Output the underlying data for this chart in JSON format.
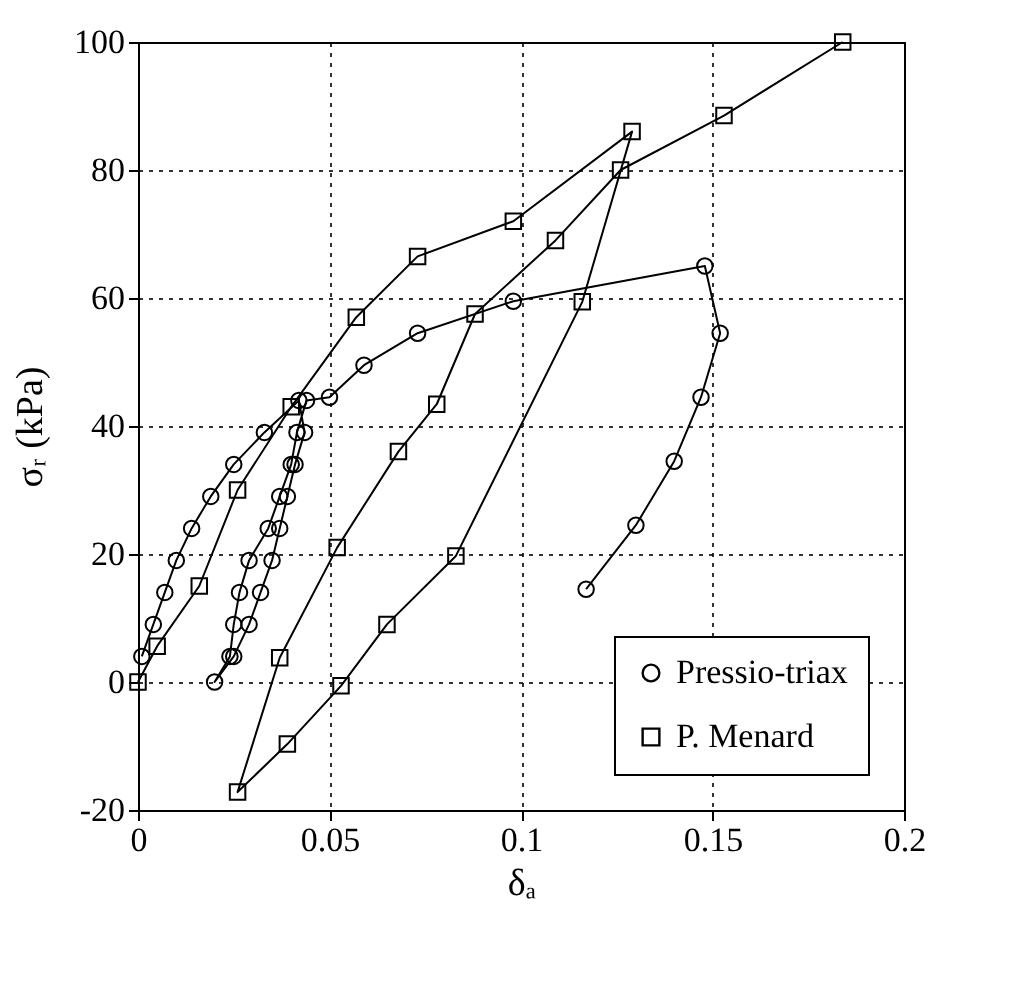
{
  "chart_data": {
    "type": "line",
    "xlabel": "δₐ",
    "ylabel": "σᵣ (kPa)",
    "xlim": [
      0,
      0.2
    ],
    "xticks": [
      0,
      0.05,
      0.1,
      0.15,
      0.2
    ],
    "ylim": [
      -20,
      100
    ],
    "yticks": [
      -20,
      0,
      20,
      40,
      60,
      80,
      100
    ],
    "grid": true,
    "legend": "bottom right",
    "line_style": "solid",
    "series": [
      {
        "name": "Pressio-triax",
        "color": "#000000",
        "marker": "circle",
        "x": [
          0.001,
          0.004,
          0.007,
          0.01,
          0.014,
          0.019,
          0.025,
          0.033,
          0.042,
          0.0435,
          0.041,
          0.039,
          0.037,
          0.035,
          0.032,
          0.029,
          0.025,
          0.02,
          0.024,
          0.025,
          0.0265,
          0.029,
          0.034,
          0.037,
          0.04,
          0.0415,
          0.044,
          0.05,
          0.059,
          0.073,
          0.098,
          0.148,
          0.152,
          0.147,
          0.14,
          0.13,
          0.117
        ],
        "values": [
          4,
          9,
          14,
          19,
          24,
          29,
          34,
          39,
          44,
          39,
          34,
          29,
          24,
          19,
          14,
          9,
          4,
          0,
          4,
          9,
          14,
          19,
          24,
          29,
          34,
          39,
          44,
          44.5,
          49.5,
          54.5,
          59.5,
          65,
          54.5,
          44.5,
          34.5,
          24.5,
          14.5
        ]
      },
      {
        "name": "P. Menard",
        "color": "#000000",
        "marker": "square",
        "x": [
          0,
          0.005,
          0.016,
          0.026,
          0.04,
          0.057,
          0.073,
          0.098,
          0.129,
          0.116,
          0.083,
          0.065,
          0.053,
          0.039,
          0.026,
          0.037,
          0.052,
          0.068,
          0.078,
          0.088,
          0.109,
          0.126,
          0.153,
          0.184
        ],
        "values": [
          0,
          5.6,
          15,
          30,
          43,
          57,
          66.5,
          72,
          86,
          59.4,
          19.7,
          9,
          -0.6,
          -9.7,
          -17.2,
          3.8,
          21,
          36,
          43.4,
          57.5,
          69,
          80,
          88.5,
          100
        ]
      }
    ]
  }
}
